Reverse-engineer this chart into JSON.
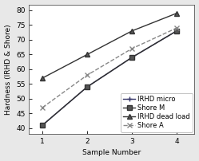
{
  "x": [
    1,
    2,
    3,
    4
  ],
  "series": {
    "IRHD micro": [
      41,
      54,
      64,
      73
    ],
    "Shore M": [
      41,
      54,
      64,
      73
    ],
    "IRHD dead load": [
      57,
      65,
      73,
      79
    ],
    "Shore A": [
      47,
      58,
      67,
      74
    ]
  },
  "markers": {
    "IRHD micro": "+",
    "Shore M": "s",
    "IRHD dead load": "^",
    "Shore A": "x"
  },
  "colors": {
    "IRHD micro": "#333366",
    "Shore M": "#333333",
    "IRHD dead load": "#333333",
    "Shore A": "#888888"
  },
  "linestyles": {
    "IRHD micro": "-",
    "Shore M": "-",
    "IRHD dead load": "-",
    "Shore A": "--"
  },
  "markerfacecolors": {
    "IRHD micro": "white",
    "Shore M": "#555555",
    "IRHD dead load": "#555555",
    "Shore A": "none"
  },
  "xlabel": "Sample Number",
  "ylabel": "Hardness (IRHD & Shore)",
  "xlim": [
    0.7,
    4.4
  ],
  "ylim": [
    38,
    82
  ],
  "yticks": [
    40,
    45,
    50,
    55,
    60,
    65,
    70,
    75,
    80
  ],
  "xticks": [
    1,
    2,
    3,
    4
  ],
  "figure_facecolor": "#e8e8e8",
  "axes_facecolor": "#ffffff",
  "axis_fontsize": 6.5,
  "legend_fontsize": 6,
  "linewidth": 1.0,
  "markersize": 4
}
